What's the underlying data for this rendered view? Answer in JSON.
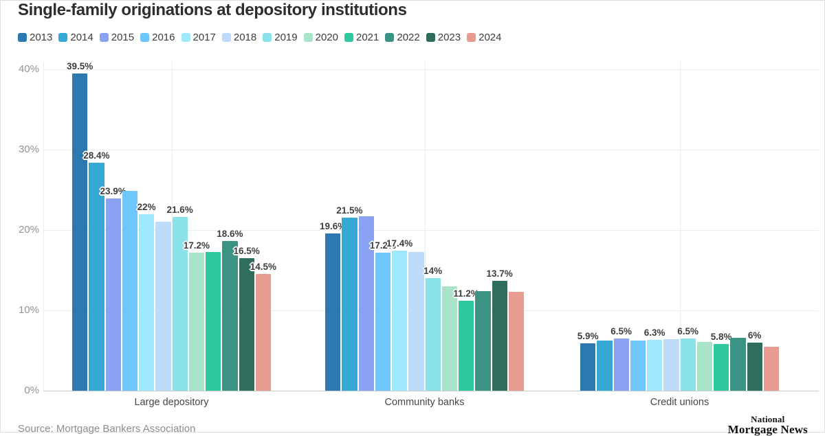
{
  "title": "Single-family originations at depository institutions",
  "source": "Source: Mortgage Bankers Association",
  "logo": {
    "line1": "National",
    "line2": "Mortgage News"
  },
  "chart_data": {
    "type": "bar",
    "title": "Single-family originations at depository institutions",
    "xlabel": "",
    "ylabel": "",
    "ylim": [
      0,
      40
    ],
    "grid": true,
    "legend_position": "top",
    "y_ticks": [
      {
        "label": "0%",
        "value": 0
      },
      {
        "label": "10%",
        "value": 10
      },
      {
        "label": "20%",
        "value": 20
      },
      {
        "label": "30%",
        "value": 30
      },
      {
        "label": "40%",
        "value": 40
      }
    ],
    "categories": [
      "Large depository",
      "Community banks",
      "Credit unions"
    ],
    "series": [
      {
        "name": "2013",
        "color": "#2e78b0",
        "values": [
          39.5,
          19.6,
          5.9
        ],
        "labels": [
          "39.5%",
          "19.6%",
          "5.9%"
        ]
      },
      {
        "name": "2014",
        "color": "#35a8d5",
        "values": [
          28.4,
          21.5,
          6.2
        ],
        "labels": [
          "28.4%",
          "21.5%",
          null
        ]
      },
      {
        "name": "2015",
        "color": "#8aa2f2",
        "values": [
          23.9,
          21.7,
          6.5
        ],
        "labels": [
          "23.9%",
          null,
          "6.5%"
        ]
      },
      {
        "name": "2016",
        "color": "#6ec6fa",
        "values": [
          24.9,
          17.2,
          6.2
        ],
        "labels": [
          null,
          "17.2%",
          null
        ]
      },
      {
        "name": "2017",
        "color": "#a0e8fb",
        "values": [
          22.0,
          17.4,
          6.3
        ],
        "labels": [
          "22%",
          "17.4%",
          "6.3%"
        ]
      },
      {
        "name": "2018",
        "color": "#bedcfa",
        "values": [
          21.0,
          17.3,
          6.4
        ],
        "labels": [
          null,
          null,
          null
        ]
      },
      {
        "name": "2019",
        "color": "#8ae3ea",
        "values": [
          21.6,
          14.0,
          6.5
        ],
        "labels": [
          "21.6%",
          "14%",
          "6.5%"
        ]
      },
      {
        "name": "2020",
        "color": "#a9e3c9",
        "values": [
          17.2,
          13.0,
          6.1
        ],
        "labels": [
          "17.2%",
          null,
          null
        ]
      },
      {
        "name": "2021",
        "color": "#2fc9a0",
        "values": [
          17.3,
          11.2,
          5.8
        ],
        "labels": [
          null,
          "11.2%",
          "5.8%"
        ]
      },
      {
        "name": "2022",
        "color": "#3b9384",
        "values": [
          18.6,
          12.4,
          6.6
        ],
        "labels": [
          "18.6%",
          null,
          null
        ]
      },
      {
        "name": "2023",
        "color": "#2f6e5d",
        "values": [
          16.5,
          13.7,
          6.0
        ],
        "labels": [
          "16.5%",
          "13.7%",
          "6%"
        ]
      },
      {
        "name": "2024",
        "color": "#e89c90",
        "values": [
          14.5,
          12.3,
          5.5
        ],
        "labels": [
          "14.5%",
          null,
          null
        ]
      }
    ]
  }
}
